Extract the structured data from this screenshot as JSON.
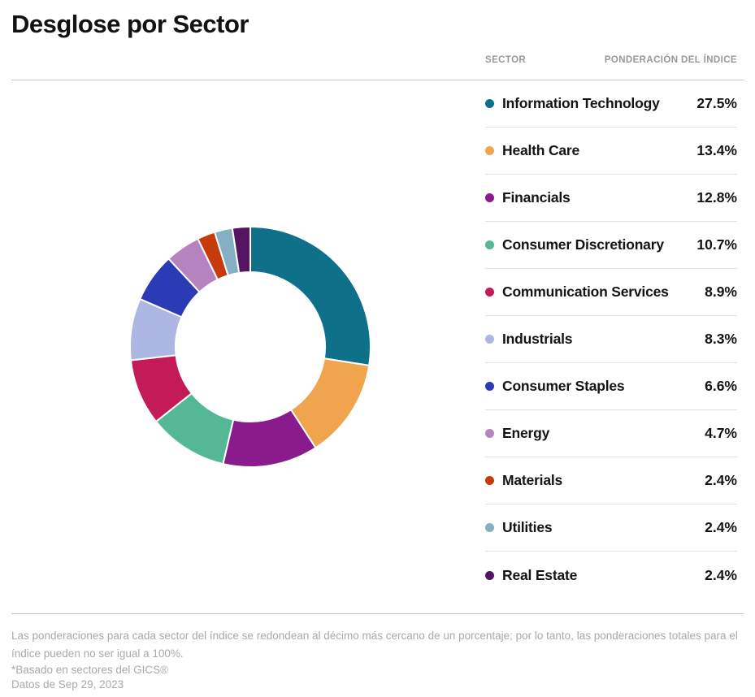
{
  "page": {
    "title": "Desglose por Sector"
  },
  "table": {
    "headers": {
      "sector": "SECTOR",
      "weight": "PONDERACIÓN DEL ÍNDICE"
    },
    "rows": [
      {
        "label": "Information Technology",
        "value": "27.5%",
        "color": "#0E7189"
      },
      {
        "label": "Health Care",
        "value": "13.4%",
        "color": "#F0A44E"
      },
      {
        "label": "Financials",
        "value": "12.8%",
        "color": "#8A1B8D"
      },
      {
        "label": "Consumer Discretionary",
        "value": "10.7%",
        "color": "#54B795"
      },
      {
        "label": "Communication Services",
        "value": "8.9%",
        "color": "#C41A58"
      },
      {
        "label": "Industrials",
        "value": "8.3%",
        "color": "#ADB7E3"
      },
      {
        "label": "Consumer Staples",
        "value": "6.6%",
        "color": "#2B3BB5"
      },
      {
        "label": "Energy",
        "value": "4.7%",
        "color": "#B583C0"
      },
      {
        "label": "Materials",
        "value": "2.4%",
        "color": "#C63A0D"
      },
      {
        "label": "Utilities",
        "value": "2.4%",
        "color": "#85AFC2"
      },
      {
        "label": "Real Estate",
        "value": "2.4%",
        "color": "#561563"
      }
    ]
  },
  "chart_data": {
    "type": "pie",
    "subtype": "donut",
    "title": "Desglose por Sector",
    "categories": [
      "Information Technology",
      "Health Care",
      "Financials",
      "Consumer Discretionary",
      "Communication Services",
      "Industrials",
      "Consumer Staples",
      "Energy",
      "Materials",
      "Utilities",
      "Real Estate"
    ],
    "values": [
      27.5,
      13.4,
      12.8,
      10.7,
      8.9,
      8.3,
      6.6,
      4.7,
      2.4,
      2.4,
      2.4
    ],
    "unit": "%",
    "colors": [
      "#0E7189",
      "#F0A44E",
      "#8A1B8D",
      "#54B795",
      "#C41A58",
      "#ADB7E3",
      "#2B3BB5",
      "#B583C0",
      "#C63A0D",
      "#85AFC2",
      "#561563"
    ],
    "start_angle_deg": -90,
    "direction": "clockwise",
    "inner_radius_ratio": 0.62,
    "slice_gap_color": "#ffffff",
    "legend_position": "right",
    "legend_style": "table"
  },
  "footnotes": {
    "rounding": "Las ponderaciones para cada sector del índice se redondean al décimo más cercano de un porcentaje; por lo tanto, las ponderaciones totales para el índice pueden no ser igual a 100%.",
    "gics": "*Basado en sectores del GICS®",
    "date": "Datos de Sep 29, 2023"
  }
}
